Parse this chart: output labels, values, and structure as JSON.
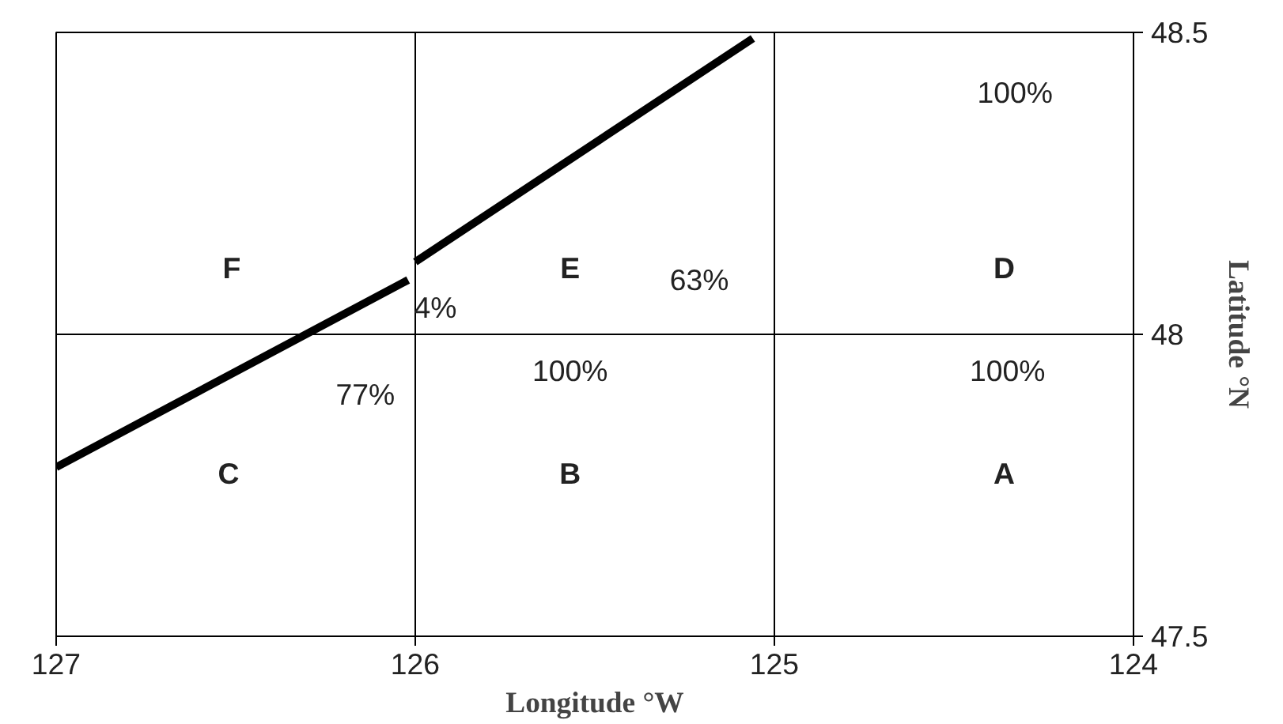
{
  "chart_data": {
    "type": "line",
    "xlabel": "Longitude °W",
    "ylabel": "Latitude °N",
    "xlim": [
      127,
      124
    ],
    "ylim": [
      47.5,
      48.5
    ],
    "xticks": [
      127,
      126,
      125,
      124
    ],
    "yticks": [
      47.5,
      48,
      48.5
    ],
    "grid": true,
    "marker": "none",
    "line_style": "solid",
    "series": [
      {
        "color": "#000000",
        "x": [
          127,
          126.02,
          126.01,
          126.0,
          125.06
        ],
        "values": [
          47.78,
          48.09,
          null,
          48.12,
          48.49
        ]
      }
    ],
    "annotations": [
      "F",
      "E",
      "63%",
      "D",
      "100%",
      "4%",
      "77%",
      "C",
      "100%",
      "B",
      "100%",
      "A"
    ]
  }
}
